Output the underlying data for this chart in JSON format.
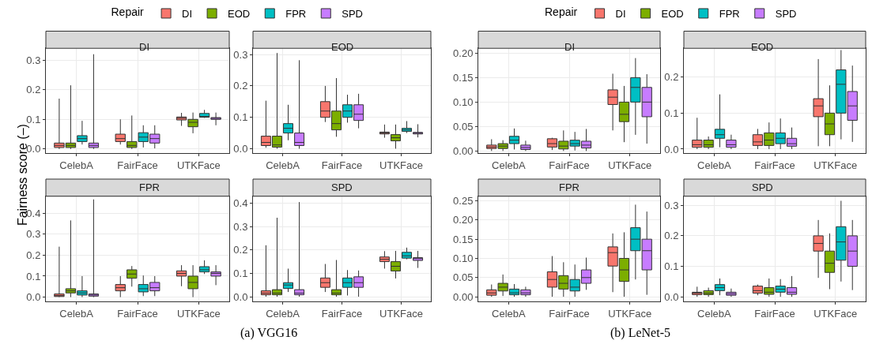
{
  "chart_data": [
    {
      "type": "box",
      "title": "DI",
      "ylabel": "Fairness score (–)",
      "legend": "top",
      "legend_title": "Repair",
      "annotations": [
        "(a) VGG16"
      ],
      "categories": [
        "CelebA",
        "FairFace",
        "UTKFace"
      ],
      "ylim": [
        -0.015,
        0.34
      ],
      "yticks": [
        {
          "value": 0,
          "label": "0.0"
        },
        0.1,
        0.2,
        0.3
      ],
      "grid": true,
      "series": [
        {
          "name": "DI",
          "color": "#f8766d",
          "boxes": [
            {
              "low": 0.0,
              "q1": 0.005,
              "median": 0.012,
              "q3": 0.02,
              "high": 0.17
            },
            {
              "low": 0.015,
              "q1": 0.025,
              "median": 0.035,
              "q3": 0.05,
              "high": 0.1
            },
            {
              "low": 0.078,
              "q1": 0.098,
              "median": 0.104,
              "q3": 0.108,
              "high": 0.122
            }
          ]
        },
        {
          "name": "EOD",
          "color": "#7cae00",
          "boxes": [
            {
              "low": 0.0,
              "q1": 0.005,
              "median": 0.012,
              "q3": 0.02,
              "high": 0.215
            },
            {
              "low": 0.0,
              "q1": 0.005,
              "median": 0.012,
              "q3": 0.025,
              "high": 0.113
            },
            {
              "low": 0.053,
              "q1": 0.075,
              "median": 0.09,
              "q3": 0.1,
              "high": 0.123
            }
          ]
        },
        {
          "name": "FPR",
          "color": "#00bfc4",
          "boxes": [
            {
              "low": 0.015,
              "q1": 0.025,
              "median": 0.035,
              "q3": 0.045,
              "high": 0.095
            },
            {
              "low": 0.005,
              "q1": 0.025,
              "median": 0.04,
              "q3": 0.055,
              "high": 0.08
            },
            {
              "low": 0.105,
              "q1": 0.107,
              "median": 0.11,
              "q3": 0.12,
              "high": 0.132
            }
          ]
        },
        {
          "name": "SPD",
          "color": "#c77cff",
          "boxes": [
            {
              "low": 0.0,
              "q1": 0.005,
              "median": 0.012,
              "q3": 0.02,
              "high": 0.32
            },
            {
              "low": 0.002,
              "q1": 0.02,
              "median": 0.035,
              "q3": 0.05,
              "high": 0.08
            },
            {
              "low": 0.08,
              "q1": 0.1,
              "median": 0.104,
              "q3": 0.106,
              "high": 0.123
            }
          ]
        }
      ]
    },
    {
      "type": "box",
      "title": "EOD",
      "categories": [
        "CelebA",
        "FairFace",
        "UTKFace"
      ],
      "ylim": [
        -0.015,
        0.32
      ],
      "yticks": [
        {
          "value": 0,
          "label": "0.0"
        },
        0.1,
        0.2,
        0.3
      ],
      "grid": true,
      "series": [
        {
          "color": "#f8766d",
          "boxes": [
            {
              "low": 0.003,
              "q1": 0.01,
              "median": 0.02,
              "q3": 0.04,
              "high": 0.153
            },
            {
              "low": 0.085,
              "q1": 0.1,
              "median": 0.12,
              "q3": 0.15,
              "high": 0.2
            },
            {
              "low": 0.035,
              "q1": 0.047,
              "median": 0.05,
              "q3": 0.053,
              "high": 0.077
            }
          ]
        },
        {
          "color": "#7cae00",
          "boxes": [
            {
              "low": 0.0,
              "q1": 0.005,
              "median": 0.012,
              "q3": 0.04,
              "high": 0.305
            },
            {
              "low": 0.038,
              "q1": 0.06,
              "median": 0.08,
              "q3": 0.12,
              "high": 0.225
            },
            {
              "low": 0.0,
              "q1": 0.025,
              "median": 0.035,
              "q3": 0.045,
              "high": 0.077
            }
          ]
        },
        {
          "color": "#00bfc4",
          "boxes": [
            {
              "low": 0.027,
              "q1": 0.05,
              "median": 0.065,
              "q3": 0.08,
              "high": 0.14
            },
            {
              "low": 0.083,
              "q1": 0.1,
              "median": 0.12,
              "q3": 0.14,
              "high": 0.172
            },
            {
              "low": 0.05,
              "q1": 0.055,
              "median": 0.06,
              "q3": 0.065,
              "high": 0.088
            }
          ]
        },
        {
          "color": "#c77cff",
          "boxes": [
            {
              "low": 0.0,
              "q1": 0.01,
              "median": 0.02,
              "q3": 0.05,
              "high": 0.282
            },
            {
              "low": 0.065,
              "q1": 0.09,
              "median": 0.11,
              "q3": 0.14,
              "high": 0.175
            },
            {
              "low": 0.036,
              "q1": 0.047,
              "median": 0.05,
              "q3": 0.052,
              "high": 0.078
            }
          ]
        }
      ]
    },
    {
      "type": "box",
      "title": "FPR",
      "categories": [
        "CelebA",
        "FairFace",
        "UTKFace"
      ],
      "ylim": [
        -0.02,
        0.48
      ],
      "yticks": [
        {
          "value": 0,
          "label": "0.0"
        },
        0.1,
        0.2,
        0.3,
        0.4
      ],
      "grid": true,
      "series": [
        {
          "color": "#f8766d",
          "boxes": [
            {
              "low": 0.0,
              "q1": 0.003,
              "median": 0.008,
              "q3": 0.015,
              "high": 0.24
            },
            {
              "low": 0.0,
              "q1": 0.03,
              "median": 0.045,
              "q3": 0.06,
              "high": 0.1
            },
            {
              "low": 0.052,
              "q1": 0.1,
              "median": 0.113,
              "q3": 0.125,
              "high": 0.152
            }
          ]
        },
        {
          "color": "#7cae00",
          "boxes": [
            {
              "low": 0.0,
              "q1": 0.02,
              "median": 0.03,
              "q3": 0.04,
              "high": 0.365
            },
            {
              "low": 0.05,
              "q1": 0.09,
              "median": 0.11,
              "q3": 0.13,
              "high": 0.148
            },
            {
              "low": 0.0,
              "q1": 0.04,
              "median": 0.07,
              "q3": 0.1,
              "high": 0.152
            }
          ]
        },
        {
          "color": "#00bfc4",
          "boxes": [
            {
              "low": 0.0,
              "q1": 0.01,
              "median": 0.02,
              "q3": 0.03,
              "high": 0.1
            },
            {
              "low": 0.005,
              "q1": 0.025,
              "median": 0.04,
              "q3": 0.06,
              "high": 0.103
            },
            {
              "low": 0.11,
              "q1": 0.12,
              "median": 0.13,
              "q3": 0.145,
              "high": 0.175
            }
          ]
        },
        {
          "color": "#c77cff",
          "boxes": [
            {
              "low": 0.0,
              "q1": 0.005,
              "median": 0.01,
              "q3": 0.015,
              "high": 0.465
            },
            {
              "low": 0.005,
              "q1": 0.03,
              "median": 0.045,
              "q3": 0.07,
              "high": 0.1
            },
            {
              "low": 0.057,
              "q1": 0.1,
              "median": 0.113,
              "q3": 0.12,
              "high": 0.152
            }
          ]
        }
      ]
    },
    {
      "type": "box",
      "title": "SPD",
      "categories": [
        "CelebA",
        "FairFace",
        "UTKFace"
      ],
      "ylim": [
        -0.02,
        0.43
      ],
      "yticks": [
        {
          "value": 0,
          "label": "0.0"
        },
        0.1,
        0.2,
        0.3,
        0.4
      ],
      "grid": true,
      "series": [
        {
          "color": "#f8766d",
          "boxes": [
            {
              "low": 0.0,
              "q1": 0.008,
              "median": 0.015,
              "q3": 0.025,
              "high": 0.22
            },
            {
              "low": 0.02,
              "q1": 0.04,
              "median": 0.06,
              "q3": 0.08,
              "high": 0.14
            },
            {
              "low": 0.12,
              "q1": 0.15,
              "median": 0.16,
              "q3": 0.17,
              "high": 0.195
            }
          ]
        },
        {
          "color": "#7cae00",
          "boxes": [
            {
              "low": 0.0,
              "q1": 0.008,
              "median": 0.015,
              "q3": 0.03,
              "high": 0.338
            },
            {
              "low": 0.0,
              "q1": 0.008,
              "median": 0.015,
              "q3": 0.03,
              "high": 0.157
            },
            {
              "low": 0.078,
              "q1": 0.11,
              "median": 0.13,
              "q3": 0.15,
              "high": 0.196
            }
          ]
        },
        {
          "color": "#00bfc4",
          "boxes": [
            {
              "low": 0.02,
              "q1": 0.035,
              "median": 0.05,
              "q3": 0.06,
              "high": 0.12
            },
            {
              "low": 0.005,
              "q1": 0.04,
              "median": 0.06,
              "q3": 0.08,
              "high": 0.114
            },
            {
              "low": 0.16,
              "q1": 0.165,
              "median": 0.175,
              "q3": 0.19,
              "high": 0.21
            }
          ]
        },
        {
          "color": "#c77cff",
          "boxes": [
            {
              "low": 0.0,
              "q1": 0.008,
              "median": 0.015,
              "q3": 0.03,
              "high": 0.405
            },
            {
              "low": 0.0,
              "q1": 0.04,
              "median": 0.06,
              "q3": 0.085,
              "high": 0.112
            },
            {
              "low": 0.123,
              "q1": 0.155,
              "median": 0.163,
              "q3": 0.167,
              "high": 0.196
            }
          ]
        }
      ]
    },
    {
      "type": "box",
      "title": "DI",
      "legend": "top",
      "legend_title": "Repair",
      "annotations": [
        "(b) LeNet-5"
      ],
      "categories": [
        "CelebA",
        "FairFace",
        "UTKFace"
      ],
      "ylim": [
        -0.005,
        0.21
      ],
      "yticks": [
        {
          "value": 0,
          "label": "0.00"
        },
        0.05,
        {
          "value": 0.1,
          "label": "0.10"
        },
        0.15,
        {
          "value": 0.2,
          "label": "0.20"
        }
      ],
      "grid": true,
      "series": [
        {
          "name": "DI",
          "color": "#f8766d",
          "boxes": [
            {
              "low": 0.0,
              "q1": 0.005,
              "median": 0.008,
              "q3": 0.012,
              "high": 0.024
            },
            {
              "low": 0.002,
              "q1": 0.008,
              "median": 0.015,
              "q3": 0.025,
              "high": 0.027
            },
            {
              "low": 0.042,
              "q1": 0.095,
              "median": 0.11,
              "q3": 0.125,
              "high": 0.158
            }
          ]
        },
        {
          "name": "EOD",
          "color": "#7cae00",
          "boxes": [
            {
              "low": 0.0,
              "q1": 0.005,
              "median": 0.01,
              "q3": 0.015,
              "high": 0.022
            },
            {
              "low": 0.0,
              "q1": 0.004,
              "median": 0.01,
              "q3": 0.02,
              "high": 0.042
            },
            {
              "low": 0.018,
              "q1": 0.06,
              "median": 0.075,
              "q3": 0.1,
              "high": 0.133
            }
          ]
        },
        {
          "name": "FPR",
          "color": "#00bfc4",
          "boxes": [
            {
              "low": 0.003,
              "q1": 0.015,
              "median": 0.022,
              "q3": 0.03,
              "high": 0.046
            },
            {
              "low": 0.001,
              "q1": 0.01,
              "median": 0.015,
              "q3": 0.022,
              "high": 0.039
            },
            {
              "low": 0.033,
              "q1": 0.1,
              "median": 0.13,
              "q3": 0.15,
              "high": 0.19
            }
          ]
        },
        {
          "name": "SPD",
          "color": "#c77cff",
          "boxes": [
            {
              "low": 0.0,
              "q1": 0.003,
              "median": 0.007,
              "q3": 0.012,
              "high": 0.021
            },
            {
              "low": 0.0,
              "q1": 0.006,
              "median": 0.012,
              "q3": 0.02,
              "high": 0.045
            },
            {
              "low": 0.015,
              "q1": 0.07,
              "median": 0.1,
              "q3": 0.13,
              "high": 0.157
            }
          ]
        }
      ]
    },
    {
      "type": "box",
      "title": "EOD",
      "categories": [
        "CelebA",
        "FairFace",
        "UTKFace"
      ],
      "ylim": [
        -0.012,
        0.28
      ],
      "yticks": [
        {
          "value": 0,
          "label": "0.0"
        },
        0.1,
        0.2
      ],
      "grid": true,
      "series": [
        {
          "color": "#f8766d",
          "boxes": [
            {
              "low": 0.0,
              "q1": 0.005,
              "median": 0.012,
              "q3": 0.025,
              "high": 0.087
            },
            {
              "low": 0.0,
              "q1": 0.01,
              "median": 0.02,
              "q3": 0.04,
              "high": 0.056
            },
            {
              "low": 0.008,
              "q1": 0.09,
              "median": 0.12,
              "q3": 0.14,
              "high": 0.25
            }
          ]
        },
        {
          "color": "#7cae00",
          "boxes": [
            {
              "low": 0.0,
              "q1": 0.005,
              "median": 0.012,
              "q3": 0.025,
              "high": 0.035
            },
            {
              "low": 0.0,
              "q1": 0.01,
              "median": 0.025,
              "q3": 0.045,
              "high": 0.074
            },
            {
              "low": 0.008,
              "q1": 0.04,
              "median": 0.07,
              "q3": 0.1,
              "high": 0.177
            }
          ]
        },
        {
          "color": "#00bfc4",
          "boxes": [
            {
              "low": 0.005,
              "q1": 0.03,
              "median": 0.04,
              "q3": 0.055,
              "high": 0.152
            },
            {
              "low": 0.0,
              "q1": 0.015,
              "median": 0.03,
              "q3": 0.045,
              "high": 0.085
            },
            {
              "low": 0.027,
              "q1": 0.1,
              "median": 0.18,
              "q3": 0.22,
              "high": 0.275
            }
          ]
        },
        {
          "color": "#c77cff",
          "boxes": [
            {
              "low": 0.0,
              "q1": 0.005,
              "median": 0.012,
              "q3": 0.025,
              "high": 0.04
            },
            {
              "low": 0.0,
              "q1": 0.008,
              "median": 0.015,
              "q3": 0.03,
              "high": 0.06
            },
            {
              "low": 0.02,
              "q1": 0.08,
              "median": 0.12,
              "q3": 0.16,
              "high": 0.232
            }
          ]
        }
      ]
    },
    {
      "type": "box",
      "title": "FPR",
      "categories": [
        "CelebA",
        "FairFace",
        "UTKFace"
      ],
      "ylim": [
        -0.012,
        0.262
      ],
      "yticks": [
        {
          "value": 0,
          "label": "0.00"
        },
        0.05,
        {
          "value": 0.1,
          "label": "0.10"
        },
        0.15,
        {
          "value": 0.2,
          "label": "0.20"
        },
        0.25
      ],
      "grid": true,
      "series": [
        {
          "color": "#f8766d",
          "boxes": [
            {
              "low": 0.0,
              "q1": 0.004,
              "median": 0.01,
              "q3": 0.018,
              "high": 0.032
            },
            {
              "low": 0.0,
              "q1": 0.025,
              "median": 0.045,
              "q3": 0.065,
              "high": 0.106
            },
            {
              "low": 0.012,
              "q1": 0.08,
              "median": 0.115,
              "q3": 0.13,
              "high": 0.165
            }
          ]
        },
        {
          "color": "#7cae00",
          "boxes": [
            {
              "low": 0.002,
              "q1": 0.015,
              "median": 0.025,
              "q3": 0.035,
              "high": 0.058
            },
            {
              "low": 0.0,
              "q1": 0.02,
              "median": 0.035,
              "q3": 0.055,
              "high": 0.09
            },
            {
              "low": 0.0,
              "q1": 0.04,
              "median": 0.07,
              "q3": 0.1,
              "high": 0.168
            }
          ]
        },
        {
          "color": "#00bfc4",
          "boxes": [
            {
              "low": 0.0,
              "q1": 0.005,
              "median": 0.01,
              "q3": 0.02,
              "high": 0.033
            },
            {
              "low": 0.0,
              "q1": 0.015,
              "median": 0.025,
              "q3": 0.045,
              "high": 0.084
            },
            {
              "low": 0.045,
              "q1": 0.12,
              "median": 0.15,
              "q3": 0.18,
              "high": 0.24
            }
          ]
        },
        {
          "color": "#c77cff",
          "boxes": [
            {
              "low": 0.0,
              "q1": 0.005,
              "median": 0.01,
              "q3": 0.018,
              "high": 0.026
            },
            {
              "low": 0.018,
              "q1": 0.035,
              "median": 0.05,
              "q3": 0.07,
              "high": 0.102
            },
            {
              "low": 0.005,
              "q1": 0.07,
              "median": 0.12,
              "q3": 0.15,
              "high": 0.222
            }
          ]
        }
      ]
    },
    {
      "type": "box",
      "title": "SPD",
      "categories": [
        "CelebA",
        "FairFace",
        "UTKFace"
      ],
      "ylim": [
        -0.015,
        0.33
      ],
      "yticks": [
        {
          "value": 0,
          "label": "0.0"
        },
        0.1,
        0.2,
        0.3
      ],
      "grid": true,
      "series": [
        {
          "color": "#f8766d",
          "boxes": [
            {
              "low": 0.0,
              "q1": 0.007,
              "median": 0.012,
              "q3": 0.015,
              "high": 0.033
            },
            {
              "low": 0.005,
              "q1": 0.012,
              "median": 0.02,
              "q3": 0.035,
              "high": 0.04
            },
            {
              "low": 0.062,
              "q1": 0.15,
              "median": 0.175,
              "q3": 0.2,
              "high": 0.252
            }
          ]
        },
        {
          "color": "#7cae00",
          "boxes": [
            {
              "low": 0.0,
              "q1": 0.007,
              "median": 0.012,
              "q3": 0.02,
              "high": 0.03
            },
            {
              "low": 0.0,
              "q1": 0.008,
              "median": 0.015,
              "q3": 0.03,
              "high": 0.06
            },
            {
              "low": 0.025,
              "q1": 0.08,
              "median": 0.11,
              "q3": 0.15,
              "high": 0.208
            }
          ]
        },
        {
          "color": "#00bfc4",
          "boxes": [
            {
              "low": 0.005,
              "q1": 0.02,
              "median": 0.03,
              "q3": 0.04,
              "high": 0.06
            },
            {
              "low": 0.0,
              "q1": 0.015,
              "median": 0.025,
              "q3": 0.035,
              "high": 0.058
            },
            {
              "low": 0.05,
              "q1": 0.12,
              "median": 0.18,
              "q3": 0.23,
              "high": 0.315
            }
          ]
        },
        {
          "color": "#c77cff",
          "boxes": [
            {
              "low": 0.0,
              "q1": 0.005,
              "median": 0.01,
              "q3": 0.015,
              "high": 0.027
            },
            {
              "low": 0.0,
              "q1": 0.008,
              "median": 0.015,
              "q3": 0.03,
              "high": 0.068
            },
            {
              "low": 0.022,
              "q1": 0.1,
              "median": 0.15,
              "q3": 0.2,
              "high": 0.252
            }
          ]
        }
      ]
    }
  ]
}
